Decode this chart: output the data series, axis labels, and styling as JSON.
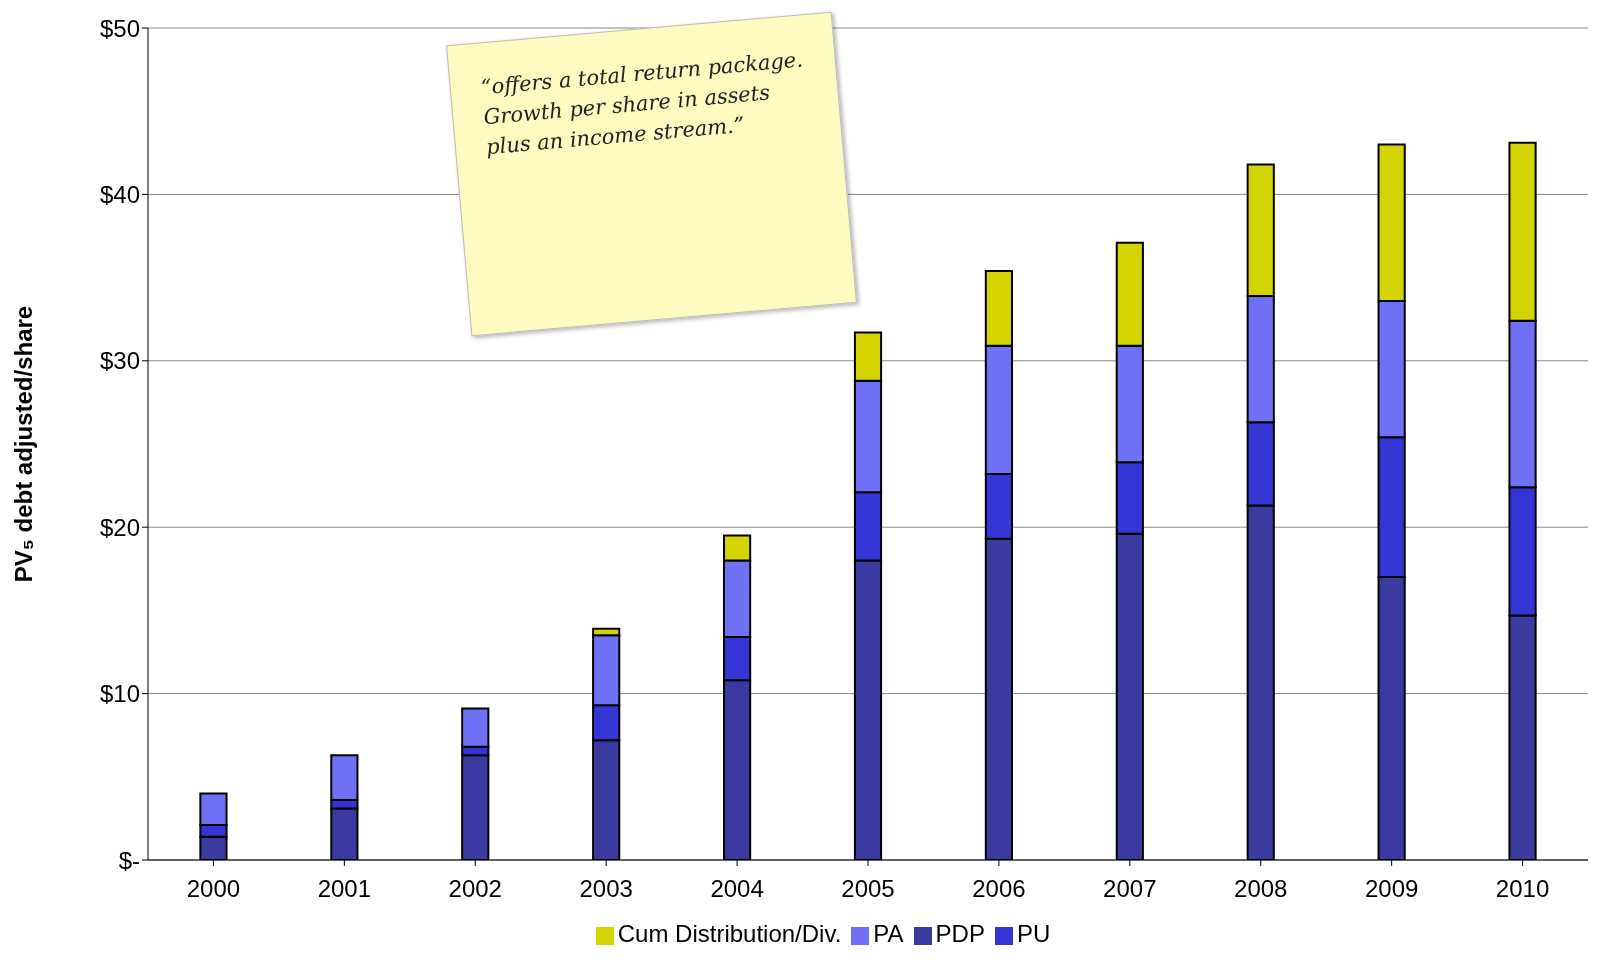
{
  "chart_data": {
    "type": "bar",
    "stacked": true,
    "ylabel": "PV₅ debt adjusted/share",
    "categories": [
      "2000",
      "2001",
      "2002",
      "2003",
      "2004",
      "2005",
      "2006",
      "2007",
      "2008",
      "2009",
      "2010"
    ],
    "series": [
      {
        "name": "PDP",
        "color": "#3a3aa0",
        "values": [
          1.4,
          3.1,
          6.3,
          7.2,
          10.8,
          18.0,
          19.3,
          19.6,
          21.3,
          17.0,
          14.7
        ]
      },
      {
        "name": "PU",
        "color": "#3535d6",
        "values": [
          0.7,
          0.5,
          0.5,
          2.1,
          2.6,
          4.1,
          3.9,
          4.3,
          5.0,
          8.4,
          7.7
        ]
      },
      {
        "name": "PA",
        "color": "#7070f5",
        "values": [
          1.9,
          2.7,
          2.3,
          4.2,
          4.6,
          6.7,
          7.7,
          7.0,
          7.6,
          8.2,
          10.0
        ]
      },
      {
        "name": "Cum Distribution/Div.",
        "color": "#d4d400",
        "values": [
          null,
          null,
          null,
          0.4,
          1.5,
          2.9,
          4.5,
          6.2,
          7.9,
          9.4,
          10.7
        ]
      }
    ],
    "ylim": [
      0,
      50
    ],
    "yticks": [
      {
        "value": 0,
        "label": "$-"
      },
      {
        "value": 10,
        "label": "$10"
      },
      {
        "value": 20,
        "label": "$20"
      },
      {
        "value": 30,
        "label": "$30"
      },
      {
        "value": 40,
        "label": "$40"
      },
      {
        "value": 50,
        "label": "$50"
      }
    ],
    "grid": "y",
    "legend": "bottom",
    "annotations": [
      "“offers a total return package. Growth per share in assets plus an income stream.”"
    ]
  }
}
